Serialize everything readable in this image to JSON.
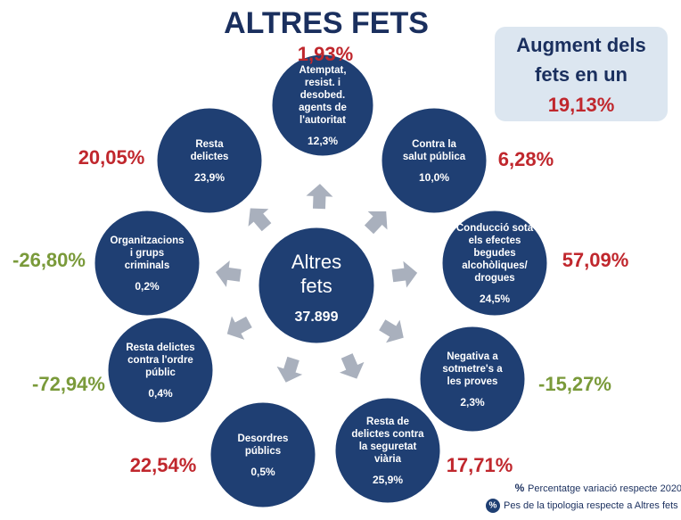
{
  "title": "ALTRES FETS",
  "summary": {
    "lines": [
      "Augment dels",
      "fets en un"
    ],
    "value": "19,13%"
  },
  "center": {
    "lines": [
      "Altres",
      "fets"
    ],
    "value": "37.899"
  },
  "nodes": [
    {
      "label": [
        "Atemptat,",
        "resist. i",
        "desobed.",
        "agents de",
        "l'autoritat"
      ],
      "share": "12,3%",
      "change": "1,93%"
    },
    {
      "label": [
        "Contra la",
        "salut pública"
      ],
      "share": "10,0%",
      "change": "6,28%"
    },
    {
      "label": [
        "Conducció sota",
        "els efectes",
        "begudes",
        "alcohòliques/",
        "drogues"
      ],
      "share": "24,5%",
      "change": "57,09%"
    },
    {
      "label": [
        "Negativa a",
        "sotmetre's a",
        "les proves"
      ],
      "share": "2,3%",
      "change": "-15,27%"
    },
    {
      "label": [
        "Resta de",
        "delictes contra",
        "la seguretat",
        "viària"
      ],
      "share": "25,9%",
      "change": "17,71%"
    },
    {
      "label": [
        "Desordres",
        "públics"
      ],
      "share": "0,5%",
      "change": "22,54%"
    },
    {
      "label": [
        "Resta delictes",
        "contra l'ordre",
        "públic"
      ],
      "share": "0,4%",
      "change": "-72,94%"
    },
    {
      "label": [
        "Organitzacions",
        "i grups",
        "criminals"
      ],
      "share": "0,2%",
      "change": "-26,80%"
    },
    {
      "label": [
        "Resta",
        "delictes"
      ],
      "share": "23,9%",
      "change": "20,05%"
    }
  ],
  "legend": [
    {
      "symbol": "%",
      "text": "Percentatge variació respecte 2020"
    },
    {
      "symbol": "%",
      "text": "Pes de la tipologia respecte a Altres fets"
    }
  ]
}
